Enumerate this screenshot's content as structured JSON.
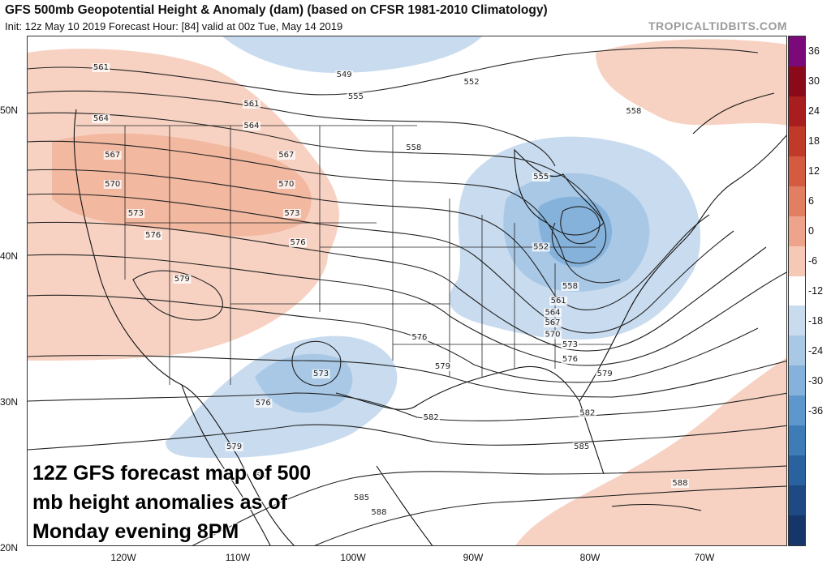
{
  "header": {
    "title": "GFS 500mb Geopotential Height & Anomaly (dam) (based on CFSR 1981-2010 Climatology)",
    "subtitle": "Init: 12z May 10 2019   Forecast Hour: [84]   valid at 00z Tue, May 14 2019",
    "brand": "TROPICALTIDBITS.COM"
  },
  "axes": {
    "lat_labels": [
      "50N",
      "40N",
      "30N",
      "20N"
    ],
    "lon_labels": [
      "120W",
      "110W",
      "100W",
      "90W",
      "80W",
      "70W"
    ]
  },
  "colorbar": {
    "labels": [
      "36",
      "30",
      "24",
      "18",
      "12",
      "6",
      "0",
      "-6",
      "-12",
      "-18",
      "-24",
      "-30",
      "-36"
    ],
    "colors": [
      "#7a0a7a",
      "#8b0a1a",
      "#a81d1d",
      "#c03a2a",
      "#d45a40",
      "#e27e62",
      "#eea48a",
      "#f6c9b6",
      "#ffffff",
      "#c9dcef",
      "#a8c8e6",
      "#85b2da",
      "#5e97cb",
      "#3e7cb8",
      "#2a62a0",
      "#1e4a84",
      "#16366a"
    ]
  },
  "contours": {
    "labels": [
      {
        "t": "561",
        "lon": -122.0,
        "lat": 53.0
      },
      {
        "t": "549",
        "lon": -101.0,
        "lat": 52.5
      },
      {
        "t": "552",
        "lon": -90.0,
        "lat": 52.0
      },
      {
        "t": "555",
        "lon": -100.0,
        "lat": 51.0
      },
      {
        "t": "561",
        "lon": -109.0,
        "lat": 50.5
      },
      {
        "t": "564",
        "lon": -122.0,
        "lat": 49.5
      },
      {
        "t": "564",
        "lon": -109.0,
        "lat": 49.0
      },
      {
        "t": "558",
        "lon": -76.0,
        "lat": 50.0
      },
      {
        "t": "558",
        "lon": -95.0,
        "lat": 47.5
      },
      {
        "t": "567",
        "lon": -121.0,
        "lat": 47.0
      },
      {
        "t": "567",
        "lon": -106.0,
        "lat": 47.0
      },
      {
        "t": "555",
        "lon": -84.0,
        "lat": 45.5
      },
      {
        "t": "570",
        "lon": -121.0,
        "lat": 45.0
      },
      {
        "t": "570",
        "lon": -106.0,
        "lat": 45.0
      },
      {
        "t": "573",
        "lon": -119.0,
        "lat": 43.0
      },
      {
        "t": "573",
        "lon": -105.5,
        "lat": 43.0
      },
      {
        "t": "576",
        "lon": -117.5,
        "lat": 41.5
      },
      {
        "t": "576",
        "lon": -105.0,
        "lat": 41.0
      },
      {
        "t": "552",
        "lon": -84.0,
        "lat": 40.7
      },
      {
        "t": "579",
        "lon": -115.0,
        "lat": 38.5
      },
      {
        "t": "558",
        "lon": -81.5,
        "lat": 38.0
      },
      {
        "t": "561",
        "lon": -82.5,
        "lat": 37.0
      },
      {
        "t": "564",
        "lon": -83.0,
        "lat": 36.2
      },
      {
        "t": "567",
        "lon": -83.0,
        "lat": 35.5
      },
      {
        "t": "570",
        "lon": -83.0,
        "lat": 34.7
      },
      {
        "t": "573",
        "lon": -81.5,
        "lat": 34.0
      },
      {
        "t": "576",
        "lon": -81.5,
        "lat": 33.0
      },
      {
        "t": "576",
        "lon": -94.5,
        "lat": 34.5
      },
      {
        "t": "579",
        "lon": -92.5,
        "lat": 32.5
      },
      {
        "t": "579",
        "lon": -78.5,
        "lat": 32.0
      },
      {
        "t": "579",
        "lon": -131.0,
        "lat": 33.7
      },
      {
        "t": "573",
        "lon": -103.0,
        "lat": 32.0
      },
      {
        "t": "576",
        "lon": -108.0,
        "lat": 30.0
      },
      {
        "t": "582",
        "lon": -93.5,
        "lat": 29.0
      },
      {
        "t": "582",
        "lon": -80.0,
        "lat": 29.3
      },
      {
        "t": "579",
        "lon": -110.5,
        "lat": 27.0
      },
      {
        "t": "585",
        "lon": -80.5,
        "lat": 27.0
      },
      {
        "t": "582",
        "lon": -108.0,
        "lat": 25.0
      },
      {
        "t": "588",
        "lon": -72.0,
        "lat": 24.5
      },
      {
        "t": "585",
        "lon": -99.5,
        "lat": 23.5
      },
      {
        "t": "588",
        "lon": -98.0,
        "lat": 22.5
      }
    ]
  },
  "overlay_text": [
    "12Z GFS forecast map of 500",
    "mb height anomalies as of",
    "Monday evening 8PM"
  ]
}
